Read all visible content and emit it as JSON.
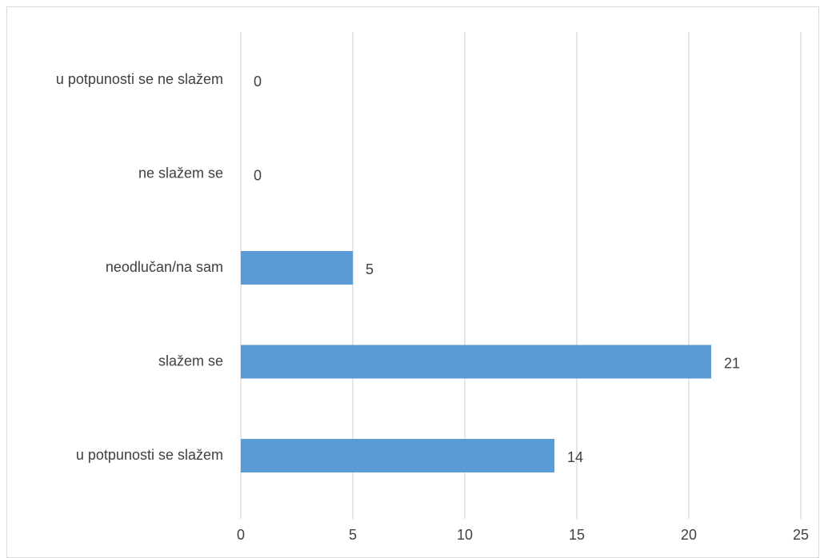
{
  "chart_data": {
    "type": "bar",
    "orientation": "horizontal",
    "categories": [
      "u potpunosti se ne slažem",
      "ne slažem se",
      "neodlučan/na sam",
      "slažem se",
      "u potpunosti se slažem"
    ],
    "values": [
      0,
      0,
      5,
      21,
      14
    ],
    "data_labels": [
      "0",
      "0",
      "5",
      "21",
      "14"
    ],
    "xticks": [
      "0",
      "5",
      "10",
      "15",
      "20",
      "25"
    ],
    "xlim": [
      0,
      25
    ],
    "title": "",
    "xlabel": "",
    "ylabel": "",
    "grid": "vertical",
    "legend": "none",
    "bar_color": "#5b9bd5",
    "grid_color": "#d9d9d9",
    "text_color": "#404040"
  }
}
